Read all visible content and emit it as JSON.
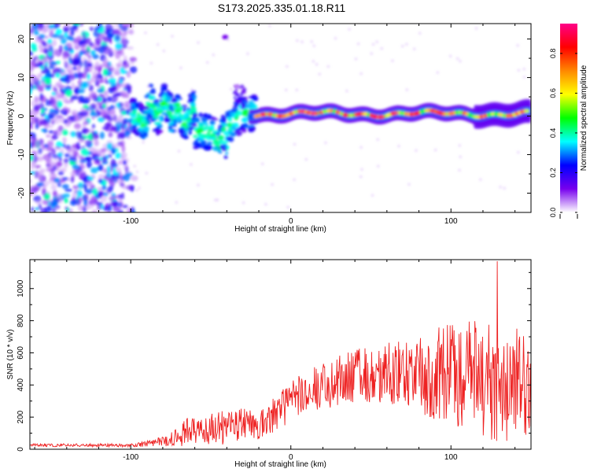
{
  "title": "S173.2025.335.01.18.R11",
  "chart_data": [
    {
      "type": "heatmap",
      "xlabel": "Height of straight line (km)",
      "ylabel": "Frequency (Hz)",
      "xlim": [
        -163,
        150
      ],
      "ylim": [
        -25,
        24
      ],
      "xticks": [
        -100,
        0,
        100
      ],
      "yticks": [
        -20,
        -10,
        0,
        10,
        20
      ],
      "colorbar": {
        "label": "Normalized spectral amplitude",
        "range": [
          0.0,
          0.95
        ],
        "ticks": [
          0.0,
          0.2,
          0.4,
          0.6,
          0.8
        ],
        "tick_labels": [
          "0.0",
          "0.2",
          "0.4",
          "0.6",
          "0.8"
        ],
        "colormap": [
          "#ffffff",
          "#7700ee",
          "#0000ff",
          "#00ffff",
          "#00ff00",
          "#ffff00",
          "#ff8800",
          "#ff0000",
          "#ff0088"
        ]
      },
      "description_regions": [
        {
          "x_range": [
            -163,
            -100
          ],
          "content": "broadband noise, amplitude 0.05-0.4, frequencies -25 to 24 Hz"
        },
        {
          "x_range": [
            -100,
            -25
          ],
          "content": "scattered signal, amplitude 0.2-0.5, frequency -10 to 8 Hz"
        },
        {
          "x_range": [
            -25,
            150
          ],
          "content": "coherent band near 0 Hz, amplitude 0.4-0.95"
        }
      ]
    },
    {
      "type": "line",
      "xlabel": "Height of straight line (km)",
      "ylabel": "SNR (10 * v/v)",
      "xlim": [
        -163,
        150
      ],
      "ylim": [
        0,
        1180
      ],
      "xticks": [
        -100,
        0,
        100
      ],
      "yticks": [
        0,
        200,
        400,
        600,
        800,
        1000
      ],
      "series": [
        {
          "name": "SNR",
          "color": "#ee2222"
        }
      ],
      "envelope": [
        {
          "x": -163,
          "mean": 25,
          "amp": 10
        },
        {
          "x": -100,
          "mean": 25,
          "amp": 10
        },
        {
          "x": -90,
          "mean": 35,
          "amp": 20
        },
        {
          "x": -75,
          "mean": 60,
          "amp": 40
        },
        {
          "x": -65,
          "mean": 110,
          "amp": 90
        },
        {
          "x": -50,
          "mean": 120,
          "amp": 100
        },
        {
          "x": -35,
          "mean": 150,
          "amp": 110
        },
        {
          "x": -20,
          "mean": 150,
          "amp": 90
        },
        {
          "x": -10,
          "mean": 220,
          "amp": 110
        },
        {
          "x": 0,
          "mean": 300,
          "amp": 130
        },
        {
          "x": 20,
          "mean": 400,
          "amp": 150
        },
        {
          "x": 40,
          "mean": 450,
          "amp": 170
        },
        {
          "x": 60,
          "mean": 470,
          "amp": 200
        },
        {
          "x": 80,
          "mean": 480,
          "amp": 260
        },
        {
          "x": 100,
          "mean": 470,
          "amp": 320
        },
        {
          "x": 120,
          "mean": 440,
          "amp": 360
        },
        {
          "x": 130,
          "mean": 420,
          "amp": 400
        },
        {
          "x": 150,
          "mean": 400,
          "amp": 300
        }
      ],
      "peak": {
        "x": 129,
        "y": 1170
      }
    }
  ]
}
